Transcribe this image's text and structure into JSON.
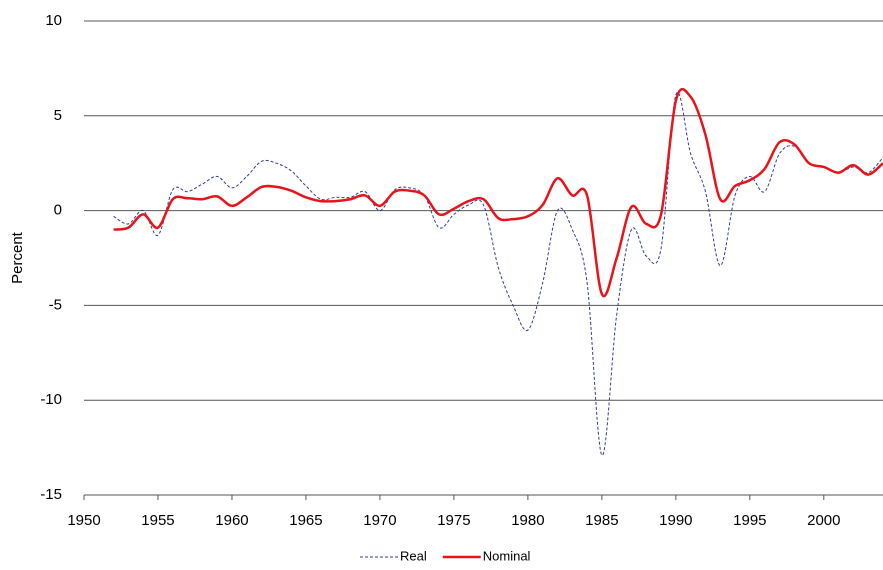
{
  "chart_data": {
    "type": "line",
    "y_label": "Percent",
    "x": [
      1952,
      1953,
      1954,
      1955,
      1956,
      1957,
      1958,
      1959,
      1960,
      1961,
      1962,
      1963,
      1964,
      1965,
      1966,
      1967,
      1968,
      1969,
      1970,
      1971,
      1972,
      1973,
      1974,
      1975,
      1976,
      1977,
      1978,
      1979,
      1980,
      1981,
      1982,
      1983,
      1984,
      1985,
      1986,
      1987,
      1988,
      1989,
      1990,
      1991,
      1992,
      1993,
      1994,
      1995,
      1996,
      1997,
      1998,
      1999,
      2000,
      2001,
      2002,
      2003,
      2004
    ],
    "series": [
      {
        "name": "Real",
        "color": "#2f3b9c",
        "dashed": true,
        "values": [
          -0.3,
          -0.7,
          0.0,
          -1.3,
          1.1,
          1.0,
          1.4,
          1.8,
          1.2,
          1.8,
          2.6,
          2.5,
          2.1,
          1.3,
          0.6,
          0.7,
          0.7,
          1.0,
          0.0,
          1.1,
          1.2,
          0.8,
          -0.9,
          -0.2,
          0.3,
          0.3,
          -3.0,
          -5.0,
          -6.3,
          -3.8,
          0.0,
          -1.0,
          -3.8,
          -12.9,
          -5.5,
          -1.0,
          -2.4,
          -2.0,
          6.1,
          3.0,
          1.0,
          -2.9,
          0.8,
          1.8,
          1.0,
          3.0,
          3.4,
          2.5,
          2.3,
          2.0,
          2.3,
          2.0,
          2.8
        ]
      },
      {
        "name": "Nominal",
        "color": "#e8141c",
        "dashed": false,
        "values": [
          -1.0,
          -0.9,
          -0.2,
          -0.9,
          0.6,
          0.65,
          0.6,
          0.75,
          0.25,
          0.7,
          1.25,
          1.25,
          1.05,
          0.7,
          0.5,
          0.5,
          0.6,
          0.8,
          0.25,
          1.0,
          1.05,
          0.8,
          -0.2,
          0.1,
          0.5,
          0.6,
          -0.4,
          -0.45,
          -0.3,
          0.3,
          1.7,
          0.8,
          0.8,
          -4.4,
          -2.5,
          0.2,
          -0.7,
          -0.2,
          5.8,
          6.0,
          4.0,
          0.6,
          1.3,
          1.6,
          2.2,
          3.6,
          3.5,
          2.5,
          2.3,
          2.0,
          2.4,
          1.9,
          2.5
        ]
      }
    ],
    "xlim": [
      1950,
      2004
    ],
    "xticks": [
      1950,
      1955,
      1960,
      1965,
      1970,
      1975,
      1980,
      1985,
      1990,
      1995,
      2000
    ],
    "ylim": [
      -15,
      10
    ],
    "yticks": [
      -15,
      -10,
      -5,
      0,
      5,
      10
    ],
    "grid": true,
    "legend": "bottom"
  }
}
